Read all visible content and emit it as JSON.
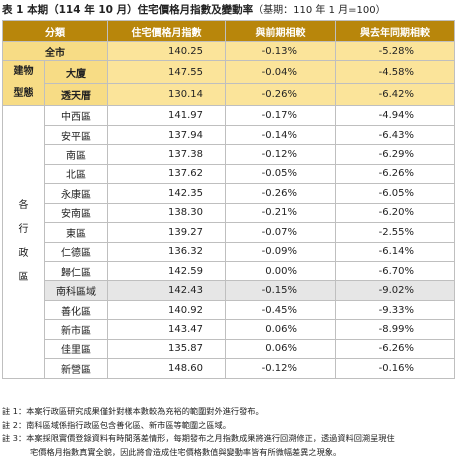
{
  "title": "表 1 本期（114 年 10 月）住宅價格月指數及變動率",
  "title_note": "（基期：110 年 1 月=100）",
  "headers": [
    "分類",
    "住宅價格月指數",
    "與前期相較",
    "與去年同期相較"
  ],
  "total": {
    "label": "全市",
    "index": "140.25",
    "mom": "-0.13%",
    "yoy": "-5.28%"
  },
  "building_group_label": [
    "建物",
    "型態"
  ],
  "building": [
    {
      "label": "大廈",
      "index": "147.55",
      "mom": "-0.04%",
      "yoy": "-4.58%"
    },
    {
      "label": "透天厝",
      "index": "130.14",
      "mom": "-0.26%",
      "yoy": "-6.42%"
    }
  ],
  "district_group_label": [
    "各",
    "行",
    "政",
    "區"
  ],
  "districts": [
    {
      "label": "中西區",
      "index": "141.97",
      "mom": "-0.17%",
      "yoy": "-4.94%"
    },
    {
      "label": "安平區",
      "index": "137.94",
      "mom": "-0.14%",
      "yoy": "-6.43%"
    },
    {
      "label": "南區",
      "index": "137.38",
      "mom": "-0.12%",
      "yoy": "-6.29%"
    },
    {
      "label": "北區",
      "index": "137.62",
      "mom": "-0.05%",
      "yoy": "-6.26%"
    },
    {
      "label": "永康區",
      "index": "142.35",
      "mom": "-0.26%",
      "yoy": "-6.05%"
    },
    {
      "label": "安南區",
      "index": "138.30",
      "mom": "-0.21%",
      "yoy": "-6.20%"
    },
    {
      "label": "東區",
      "index": "139.27",
      "mom": "-0.07%",
      "yoy": "-2.55%"
    },
    {
      "label": "仁德區",
      "index": "136.32",
      "mom": "-0.09%",
      "yoy": "-6.14%"
    },
    {
      "label": "歸仁區",
      "index": "142.59",
      "mom": "0.00%",
      "yoy": "-6.70%"
    },
    {
      "label": "南科區域",
      "index": "142.43",
      "mom": "-0.15%",
      "yoy": "-9.02%"
    },
    {
      "label": "善化區",
      "index": "140.92",
      "mom": "-0.45%",
      "yoy": "-9.33%"
    },
    {
      "label": "新市區",
      "index": "143.47",
      "mom": "0.06%",
      "yoy": "-8.99%"
    },
    {
      "label": "佳里區",
      "index": "135.87",
      "mom": "0.06%",
      "yoy": "-6.26%"
    },
    {
      "label": "新營區",
      "index": "148.60",
      "mom": "-0.12%",
      "yoy": "-0.16%"
    }
  ],
  "notes": [
    "註 1：本案行政區研究成果僅針對樣本數較為充裕的範圍對外進行發布。",
    "註 2：南科區域係指行政區包含善化區、新市區等範圍之區域。",
    "註 3：本案採限實價登錄資料有時間落差情形，每期發布之月指數成果將進行回溯修正，透過資料回溯呈現住",
    "宅價格月指數真實全貌，因此將會造成住宅價格數值與變動率皆有所微幅差異之現象。"
  ]
}
